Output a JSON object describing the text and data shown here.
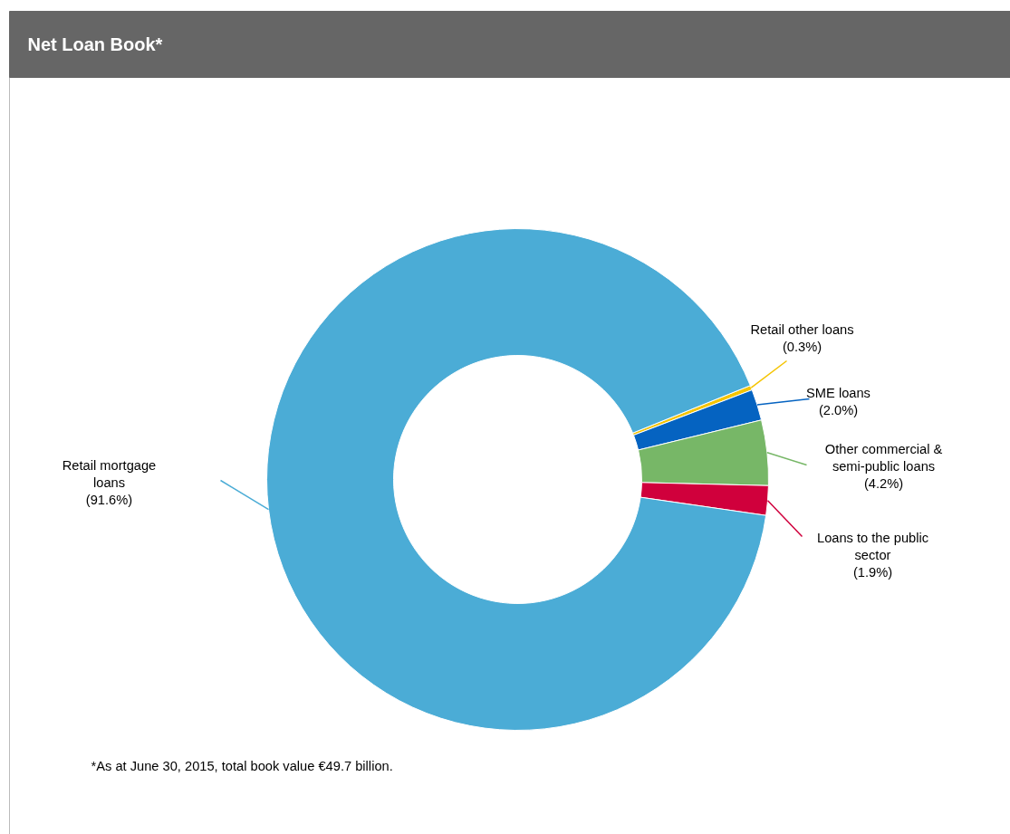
{
  "chart_data": {
    "type": "donut",
    "title": "Net Loan Book*",
    "categories": [
      "Retail other loans",
      "SME loans",
      "Other commercial & semi-public loans",
      "Loans to the public sector",
      "Retail mortgage loans"
    ],
    "values": [
      0.3,
      2.0,
      4.2,
      1.9,
      91.6
    ],
    "colors": [
      "#f5c400",
      "#0563c1",
      "#77b767",
      "#d0003c",
      "#4bacd6"
    ],
    "value_labels": [
      "(0.3%)",
      "(2.0%)",
      "(4.2%)",
      "(1.9%)",
      "(91.6%)"
    ],
    "annotations": [
      "*As at June 30, 2015, total book value €49.7 billion."
    ]
  }
}
